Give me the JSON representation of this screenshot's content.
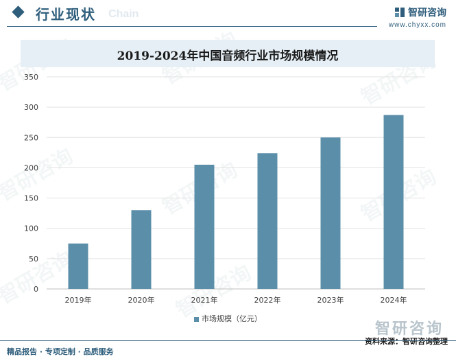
{
  "header": {
    "section_title": "行业现状",
    "section_ghost": "Chain",
    "brand_name": "智研咨询",
    "brand_url": "www.chyxx.com"
  },
  "chart_data": {
    "type": "bar",
    "title": "2019-2024年中国音频行业市场规模情况",
    "categories": [
      "2019年",
      "2020年",
      "2021年",
      "2022年",
      "2023年",
      "2024年"
    ],
    "series": [
      {
        "name": "市场规模（亿元）",
        "values": [
          75,
          130,
          205,
          224,
          250,
          287
        ],
        "color": "#5b8fa9"
      }
    ],
    "ylim": [
      0,
      350
    ],
    "yticks": [
      0,
      50,
      100,
      150,
      200,
      250,
      300,
      350
    ],
    "grid": true,
    "legend_position": "bottom"
  },
  "footer": {
    "tagline": "精品报告 · 专项定制 · 品质服务",
    "source": "资料来源：智研咨询整理",
    "brand_name": "智研咨询"
  }
}
